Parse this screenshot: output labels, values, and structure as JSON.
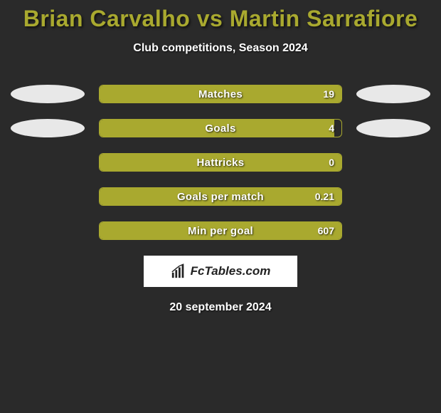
{
  "title": "Brian Carvalho vs Martin Sarrafiore",
  "subtitle": "Club competitions, Season 2024",
  "accent_color": "#a9a92f",
  "background_color": "#2a2a2a",
  "ellipse_color": "#e8e8e8",
  "stats": [
    {
      "label": "Matches",
      "value": "19",
      "fill_pct": 100,
      "ellipses": true
    },
    {
      "label": "Goals",
      "value": "4",
      "fill_pct": 97,
      "ellipses": true
    },
    {
      "label": "Hattricks",
      "value": "0",
      "fill_pct": 100,
      "ellipses": false
    },
    {
      "label": "Goals per match",
      "value": "0.21",
      "fill_pct": 100,
      "ellipses": false
    },
    {
      "label": "Min per goal",
      "value": "607",
      "fill_pct": 100,
      "ellipses": false
    }
  ],
  "logo_brand": "FcTables.com",
  "date": "20 september 2024"
}
